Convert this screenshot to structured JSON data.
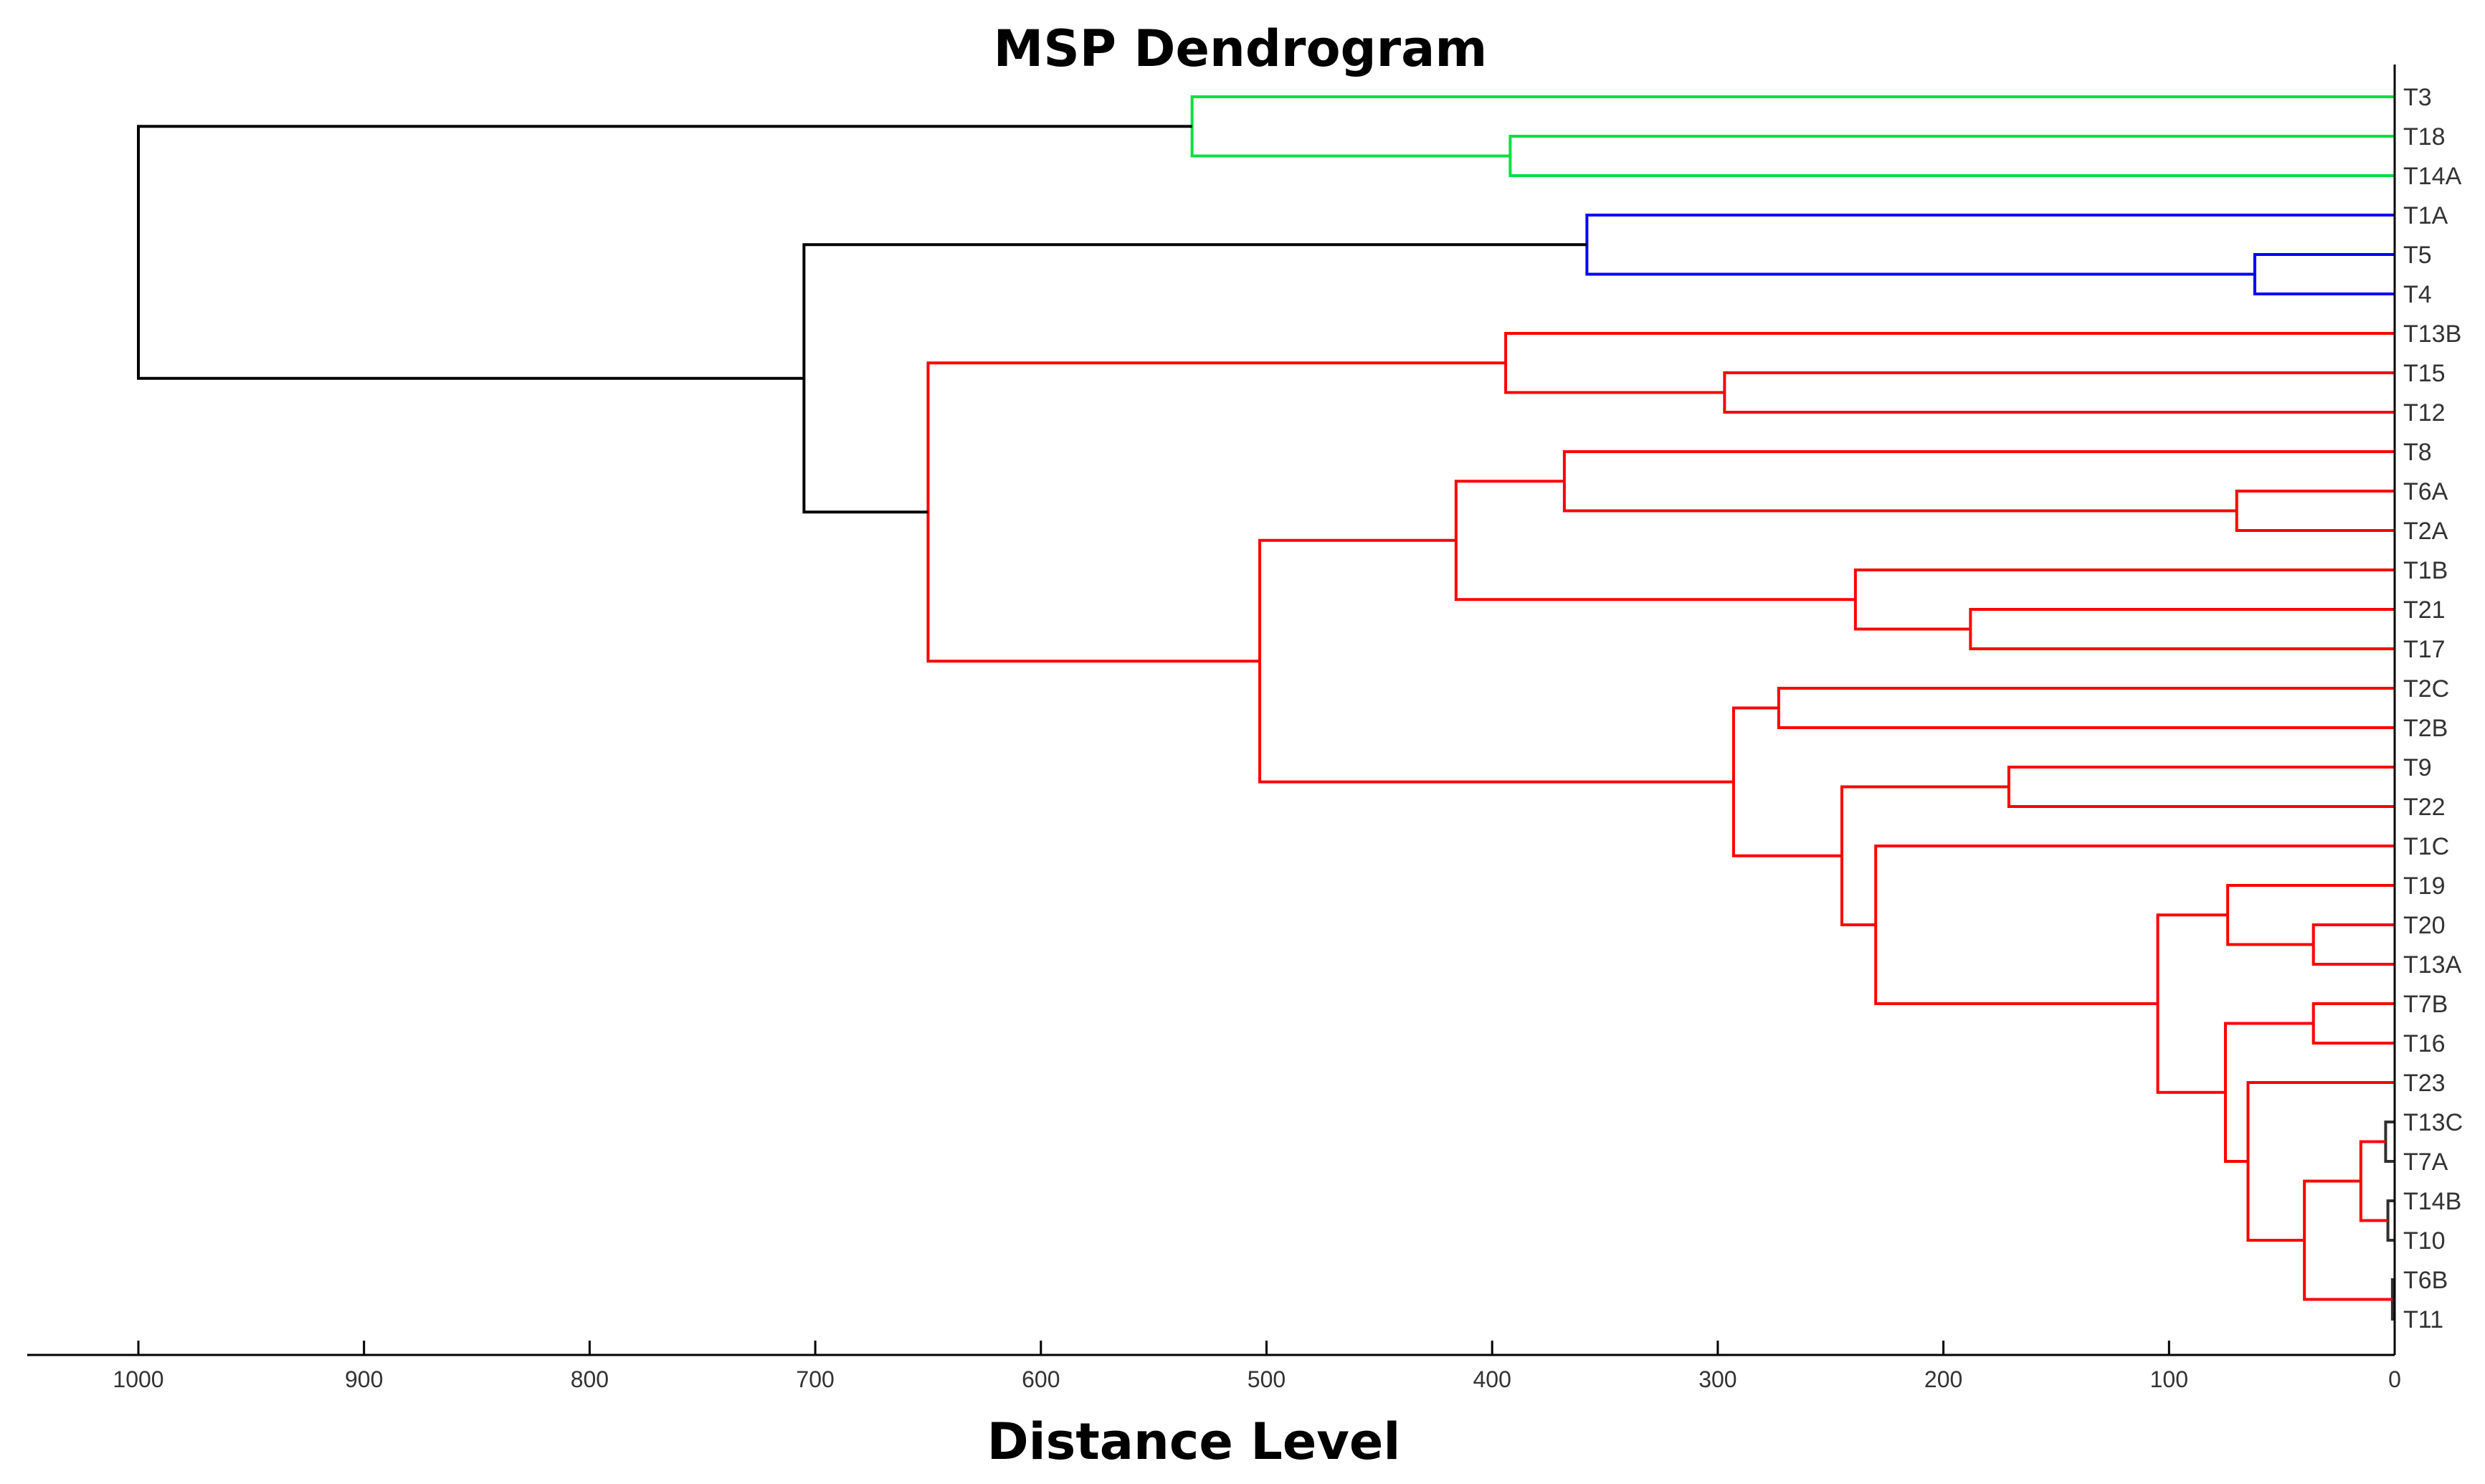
{
  "chart_data": {
    "type": "dendrogram",
    "title": "MSP Dendrogram",
    "xlabel": "Distance Level",
    "ylabel": "",
    "xlim": [
      1000,
      0
    ],
    "x_ticks": [
      "1000",
      "900",
      "800",
      "700",
      "600",
      "500",
      "400",
      "300",
      "200",
      "100",
      "0"
    ],
    "grid": false,
    "legend": "none",
    "colors": {
      "green": "#00e040",
      "blue": "#0000ff",
      "red": "#ff0000",
      "black": "#000000",
      "dark": "#303030"
    },
    "leaves": [
      "T3",
      "T18",
      "T14A",
      "T1A",
      "T5",
      "T4",
      "T13B",
      "T15",
      "T12",
      "T8",
      "T6A",
      "T2A",
      "T1B",
      "T21",
      "T17",
      "T2C",
      "T2B",
      "T9",
      "T22",
      "T1C",
      "T19",
      "T20",
      "T13A",
      "T7B",
      "T16",
      "T23",
      "T13C",
      "T7A",
      "T14B",
      "T10",
      "T6B",
      "T11"
    ],
    "merges": [
      {
        "id": "n1",
        "left": "T18",
        "right": "T14A",
        "distance": 392,
        "color": "green"
      },
      {
        "id": "n2",
        "left": "T3",
        "right": "n1",
        "distance": 533,
        "color": "green"
      },
      {
        "id": "n3",
        "left": "T5",
        "right": "T4",
        "distance": 62,
        "color": "blue"
      },
      {
        "id": "n4",
        "left": "T1A",
        "right": "n3",
        "distance": 358,
        "color": "blue"
      },
      {
        "id": "n5",
        "left": "T15",
        "right": "T12",
        "distance": 297,
        "color": "red"
      },
      {
        "id": "n6",
        "left": "T13B",
        "right": "n5",
        "distance": 394,
        "color": "red"
      },
      {
        "id": "n7",
        "left": "T6A",
        "right": "T2A",
        "distance": 70,
        "color": "red"
      },
      {
        "id": "n8",
        "left": "T8",
        "right": "n7",
        "distance": 368,
        "color": "red"
      },
      {
        "id": "n9",
        "left": "T21",
        "right": "T17",
        "distance": 188,
        "color": "red"
      },
      {
        "id": "n10",
        "left": "T1B",
        "right": "n9",
        "distance": 239,
        "color": "red"
      },
      {
        "id": "n11",
        "left": "n8",
        "right": "n10",
        "distance": 416,
        "color": "red"
      },
      {
        "id": "n12",
        "left": "T2C",
        "right": "T2B",
        "distance": 273,
        "color": "red"
      },
      {
        "id": "n13",
        "left": "T9",
        "right": "T22",
        "distance": 171,
        "color": "red"
      },
      {
        "id": "n14",
        "left": "T20",
        "right": "T13A",
        "distance": 36,
        "color": "red"
      },
      {
        "id": "n15",
        "left": "T19",
        "right": "n14",
        "distance": 74,
        "color": "red"
      },
      {
        "id": "n16",
        "left": "T7B",
        "right": "T16",
        "distance": 36,
        "color": "red"
      },
      {
        "id": "n17",
        "left": "T13C",
        "right": "T7A",
        "distance": 4,
        "color": "dark"
      },
      {
        "id": "n18",
        "left": "T14B",
        "right": "T10",
        "distance": 3,
        "color": "dark"
      },
      {
        "id": "n19",
        "left": "n17",
        "right": "n18",
        "distance": 15,
        "color": "red"
      },
      {
        "id": "n20",
        "left": "T6B",
        "right": "T11",
        "distance": 1,
        "color": "dark"
      },
      {
        "id": "n21",
        "left": "n19",
        "right": "n20",
        "distance": 40,
        "color": "red"
      },
      {
        "id": "n22",
        "left": "T23",
        "right": "n21",
        "distance": 65,
        "color": "red"
      },
      {
        "id": "n23",
        "left": "n16",
        "right": "n22",
        "distance": 75,
        "color": "red"
      },
      {
        "id": "n24",
        "left": "n15",
        "right": "n23",
        "distance": 105,
        "color": "red"
      },
      {
        "id": "n25",
        "left": "T1C",
        "right": "n24",
        "distance": 230,
        "color": "red"
      },
      {
        "id": "n26",
        "left": "n13",
        "right": "n25",
        "distance": 245,
        "color": "red"
      },
      {
        "id": "n27",
        "left": "n12",
        "right": "n26",
        "distance": 293,
        "color": "red"
      },
      {
        "id": "n28",
        "left": "n11",
        "right": "n27",
        "distance": 503,
        "color": "red"
      },
      {
        "id": "n29",
        "left": "n6",
        "right": "n28",
        "distance": 650,
        "color": "red"
      },
      {
        "id": "n30",
        "left": "n4",
        "right": "n29",
        "distance": 705,
        "color": "black"
      },
      {
        "id": "n31",
        "left": "n2",
        "right": "n30",
        "distance": 1000,
        "color": "black"
      }
    ]
  }
}
